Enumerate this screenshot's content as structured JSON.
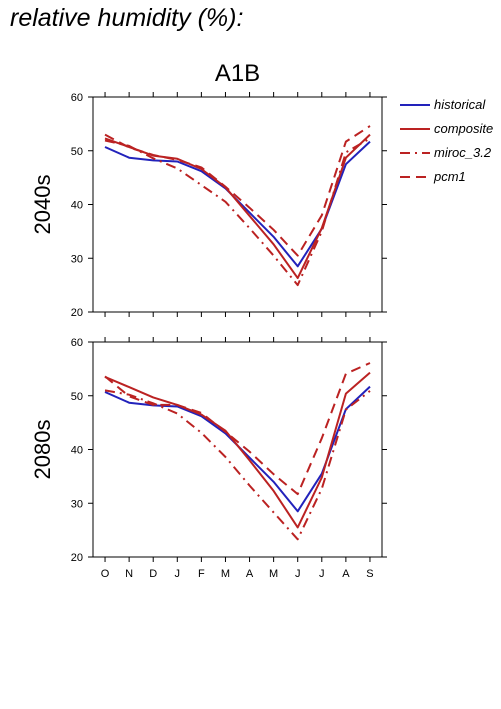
{
  "heading": "relative humidity (%):",
  "chart_data": {
    "type": "line",
    "subtitle": "A1B",
    "categories": [
      "O",
      "N",
      "D",
      "J",
      "F",
      "M",
      "A",
      "M",
      "J",
      "J",
      "A",
      "S"
    ],
    "ylim": [
      20,
      60
    ],
    "yticks": [
      20,
      30,
      40,
      50,
      60
    ],
    "grid": false,
    "legend_position": "top-right, outside plot",
    "legend": [
      {
        "name": "historical",
        "color": "#2222bb",
        "dash": "solid"
      },
      {
        "name": "composite",
        "color": "#bb2222",
        "dash": "solid"
      },
      {
        "name": "miroc_3.2",
        "color": "#bb2222",
        "dash": "dash-dot"
      },
      {
        "name": "pcm1",
        "color": "#bb2222",
        "dash": "dashed"
      }
    ],
    "panels": [
      {
        "label": "2040s",
        "series": [
          {
            "name": "historical",
            "values": [
              50.7,
              48.7,
              48.2,
              48.0,
              46.2,
              43.0,
              38.5,
              34.0,
              28.5,
              35.5,
              47.5,
              51.7
            ]
          },
          {
            "name": "composite",
            "values": [
              52.3,
              50.7,
              49.1,
              48.5,
              46.6,
              43.2,
              37.9,
              32.6,
              26.3,
              35.6,
              48.7,
              53.0
            ]
          },
          {
            "name": "miroc_3.2",
            "values": [
              51.9,
              50.9,
              48.6,
              46.7,
              43.6,
              40.5,
              35.6,
              30.5,
              25.0,
              35.0,
              49.7,
              52.3
            ]
          },
          {
            "name": "pcm1",
            "values": [
              53.0,
              50.6,
              49.2,
              48.3,
              46.9,
              43.3,
              39.4,
              35.3,
              30.5,
              38.0,
              51.7,
              54.6
            ]
          }
        ]
      },
      {
        "label": "2080s",
        "series": [
          {
            "name": "historical",
            "values": [
              50.7,
              48.7,
              48.2,
              48.0,
              46.2,
              43.0,
              38.5,
              34.0,
              28.5,
              35.5,
              47.5,
              51.7
            ]
          },
          {
            "name": "composite",
            "values": [
              53.5,
              51.6,
              49.7,
              48.3,
              46.5,
              43.5,
              38.0,
              32.3,
              25.5,
              34.8,
              50.4,
              54.3
            ]
          },
          {
            "name": "miroc_3.2",
            "values": [
              51.0,
              50.2,
              48.6,
              46.7,
              43.1,
              38.6,
              33.3,
              28.3,
              23.3,
              32.7,
              47.4,
              50.9
            ]
          },
          {
            "name": "pcm1",
            "values": [
              53.6,
              49.9,
              48.3,
              48.3,
              46.8,
              43.3,
              39.6,
              35.4,
              31.7,
              42.1,
              54.1,
              56.1
            ]
          }
        ]
      }
    ]
  }
}
